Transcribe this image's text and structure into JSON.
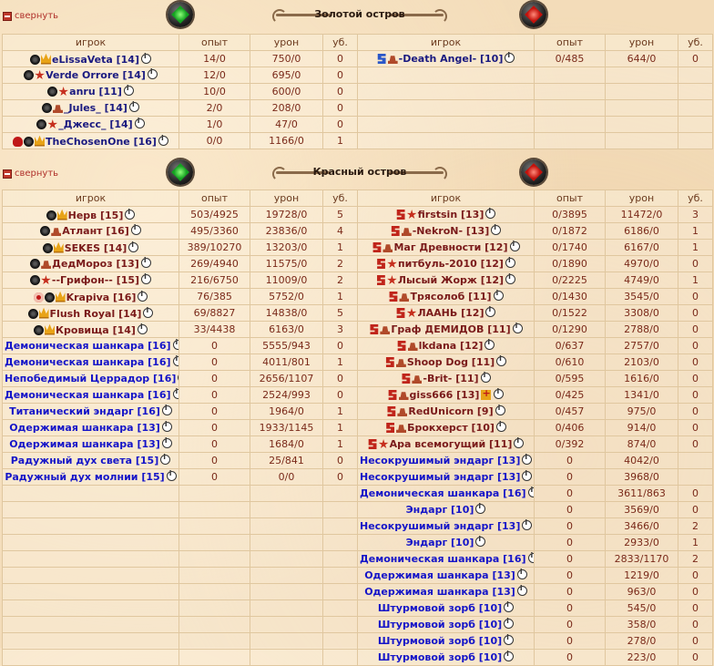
{
  "collapse_label": "свернуть",
  "headers": {
    "player": "игрок",
    "exp": "опыт",
    "dmg": "урон",
    "kills": "уб."
  },
  "sections": [
    {
      "title": "Золотой остров",
      "left": [
        {
          "icons": [
            "dark",
            "crown"
          ],
          "name": "eLissaVeta",
          "level": "[14]",
          "exp": "14/0",
          "dmg": "750/0",
          "kills": "0",
          "cls": "gold"
        },
        {
          "icons": [
            "dark",
            "star"
          ],
          "name": "Verde Orrore",
          "level": "[14]",
          "exp": "12/0",
          "dmg": "695/0",
          "kills": "0",
          "cls": "gold"
        },
        {
          "icons": [
            "dark",
            "star"
          ],
          "name": "anru",
          "level": "[11]",
          "exp": "10/0",
          "dmg": "600/0",
          "kills": "0",
          "cls": "gold"
        },
        {
          "icons": [
            "dark",
            "hat"
          ],
          "name": "_Jules_",
          "level": "[14]",
          "exp": "2/0",
          "dmg": "208/0",
          "kills": "0",
          "cls": "gold"
        },
        {
          "icons": [
            "dark",
            "star"
          ],
          "name": "_Джесс_",
          "level": "[14]",
          "exp": "1/0",
          "dmg": "47/0",
          "kills": "0",
          "cls": "gold"
        },
        {
          "icons": [
            "skull",
            "dark",
            "crown"
          ],
          "name": "TheChosenOne",
          "level": "[16]",
          "exp": "0/0",
          "dmg": "1166/0",
          "kills": "1",
          "cls": "gold"
        }
      ],
      "right": [
        {
          "icons": [
            "blue",
            "hat"
          ],
          "name": "-Death Angel-",
          "level": "[10]",
          "exp": "0/485",
          "dmg": "644/0",
          "kills": "0",
          "cls": "gold"
        },
        {},
        {},
        {},
        {},
        {}
      ]
    },
    {
      "title": "Красный остров",
      "left": [
        {
          "icons": [
            "dark",
            "crown"
          ],
          "name": "Нерв",
          "level": "[15]",
          "exp": "503/4925",
          "dmg": "19728/0",
          "kills": "5",
          "cls": "red"
        },
        {
          "icons": [
            "dark",
            "hat"
          ],
          "name": "Атлант",
          "level": "[16]",
          "exp": "495/3360",
          "dmg": "23836/0",
          "kills": "4",
          "cls": "red"
        },
        {
          "icons": [
            "dark",
            "crown"
          ],
          "name": "SEKES",
          "level": "[14]",
          "exp": "389/10270",
          "dmg": "13203/0",
          "kills": "1",
          "cls": "red"
        },
        {
          "icons": [
            "dark",
            "hat"
          ],
          "name": "ДедМороз",
          "level": "[13]",
          "exp": "269/4940",
          "dmg": "11575/0",
          "kills": "2",
          "cls": "red"
        },
        {
          "icons": [
            "dark",
            "star"
          ],
          "name": "--Грифон--",
          "level": "[15]",
          "exp": "216/6750",
          "dmg": "11009/0",
          "kills": "2",
          "cls": "red"
        },
        {
          "icons": [
            "heart",
            "dark",
            "crown"
          ],
          "name": "Krapiva",
          "level": "[16]",
          "exp": "76/385",
          "dmg": "5752/0",
          "kills": "1",
          "cls": "red"
        },
        {
          "icons": [
            "dark",
            "crown"
          ],
          "name": "Flush Royal",
          "level": "[14]",
          "exp": "69/8827",
          "dmg": "14838/0",
          "kills": "5",
          "cls": "red"
        },
        {
          "icons": [
            "dark",
            "crown"
          ],
          "name": "Кровища",
          "level": "[14]",
          "exp": "33/4438",
          "dmg": "6163/0",
          "kills": "3",
          "cls": "red"
        },
        {
          "icons": [],
          "name": "Демоническая шанкара",
          "level": "[16]",
          "exp": "0",
          "dmg": "5555/943",
          "kills": "0",
          "cls": "npc"
        },
        {
          "icons": [],
          "name": "Демоническая шанкара",
          "level": "[16]",
          "exp": "0",
          "dmg": "4011/801",
          "kills": "1",
          "cls": "npc"
        },
        {
          "icons": [],
          "name": "Непобедимый Церрадор",
          "level": "[16]",
          "exp": "0",
          "dmg": "2656/1107",
          "kills": "0",
          "cls": "npc"
        },
        {
          "icons": [],
          "name": "Демоническая шанкара",
          "level": "[16]",
          "exp": "0",
          "dmg": "2524/993",
          "kills": "0",
          "cls": "npc"
        },
        {
          "icons": [],
          "name": "Титанический эндарг",
          "level": "[16]",
          "exp": "0",
          "dmg": "1964/0",
          "kills": "1",
          "cls": "npc"
        },
        {
          "icons": [],
          "name": "Одержимая шанкара",
          "level": "[13]",
          "exp": "0",
          "dmg": "1933/1145",
          "kills": "1",
          "cls": "npc"
        },
        {
          "icons": [],
          "name": "Одержимая шанкара",
          "level": "[13]",
          "exp": "0",
          "dmg": "1684/0",
          "kills": "1",
          "cls": "npc"
        },
        {
          "icons": [],
          "name": "Радужный дух света ",
          "level": "[15]",
          "exp": "0",
          "dmg": "25/841",
          "kills": "0",
          "cls": "npc"
        },
        {
          "icons": [],
          "name": "Радужный дух молнии ",
          "level": "[15]",
          "exp": "0",
          "dmg": "0/0",
          "kills": "0",
          "cls": "npc"
        },
        {},
        {},
        {},
        {},
        {},
        {},
        {},
        {},
        {},
        {}
      ],
      "right": [
        {
          "icons": [
            "snake",
            "star"
          ],
          "name": "firstsin",
          "level": "[13]",
          "exp": "0/3895",
          "dmg": "11472/0",
          "kills": "3",
          "cls": "red"
        },
        {
          "icons": [
            "snake",
            "hat"
          ],
          "name": "-NekroN-",
          "level": "[13]",
          "exp": "0/1872",
          "dmg": "6186/0",
          "kills": "1",
          "cls": "red"
        },
        {
          "icons": [
            "snake",
            "hat"
          ],
          "name": "Маг Древности",
          "level": "[12]",
          "exp": "0/1740",
          "dmg": "6167/0",
          "kills": "1",
          "cls": "red"
        },
        {
          "icons": [
            "snake",
            "star"
          ],
          "name": "питбуль-2010",
          "level": "[12]",
          "exp": "0/1890",
          "dmg": "4970/0",
          "kills": "0",
          "cls": "red"
        },
        {
          "icons": [
            "snake",
            "star"
          ],
          "name": "Лысый Жорж",
          "level": "[12]",
          "exp": "0/2225",
          "dmg": "4749/0",
          "kills": "1",
          "cls": "red"
        },
        {
          "icons": [
            "snake",
            "hat"
          ],
          "name": "Трясолоб",
          "level": "[11]",
          "exp": "0/1430",
          "dmg": "3545/0",
          "kills": "0",
          "cls": "red"
        },
        {
          "icons": [
            "snake",
            "star"
          ],
          "name": "ЛААНЬ",
          "level": "[12]",
          "exp": "0/1522",
          "dmg": "3308/0",
          "kills": "0",
          "cls": "red"
        },
        {
          "icons": [
            "snake",
            "hat"
          ],
          "name": "Граф ДЕМИДОВ",
          "level": "[11]",
          "exp": "0/1290",
          "dmg": "2788/0",
          "kills": "0",
          "cls": "red"
        },
        {
          "icons": [
            "snake",
            "hat"
          ],
          "name": "lkdana",
          "level": "[12]",
          "exp": "0/637",
          "dmg": "2757/0",
          "kills": "0",
          "cls": "red"
        },
        {
          "icons": [
            "snake",
            "hat"
          ],
          "name": "Shoop Dog",
          "level": "[11]",
          "exp": "0/610",
          "dmg": "2103/0",
          "kills": "0",
          "cls": "red"
        },
        {
          "icons": [
            "snake",
            "hat"
          ],
          "name": "-Brit-",
          "level": "[11]",
          "exp": "0/595",
          "dmg": "1616/0",
          "kills": "0",
          "cls": "red"
        },
        {
          "icons": [
            "snake",
            "hat"
          ],
          "name": "giss666",
          "level": "[13]",
          "exp": "0/425",
          "dmg": "1341/0",
          "kills": "0",
          "cls": "red",
          "badge": true
        },
        {
          "icons": [
            "snake",
            "hat"
          ],
          "name": "RedUnicorn",
          "level": "[9]",
          "exp": "0/457",
          "dmg": "975/0",
          "kills": "0",
          "cls": "red"
        },
        {
          "icons": [
            "snake",
            "hat"
          ],
          "name": "Брокхерст",
          "level": "[10]",
          "exp": "0/406",
          "dmg": "914/0",
          "kills": "0",
          "cls": "red"
        },
        {
          "icons": [
            "snake",
            "star"
          ],
          "name": "Ара всемогущий",
          "level": "[11]",
          "exp": "0/392",
          "dmg": "874/0",
          "kills": "0",
          "cls": "red"
        },
        {
          "icons": [],
          "name": "Несокрушимый эндарг",
          "level": "[13]",
          "exp": "0",
          "dmg": "4042/0",
          "kills": "",
          "cls": "npc"
        },
        {
          "icons": [],
          "name": "Несокрушимый эндарг",
          "level": "[13]",
          "exp": "0",
          "dmg": "3968/0",
          "kills": "",
          "cls": "npc"
        },
        {
          "icons": [],
          "name": "Демоническая шанкара",
          "level": "[16]",
          "exp": "0",
          "dmg": "3611/863",
          "kills": "0",
          "cls": "npc"
        },
        {
          "icons": [],
          "name": "Эндарг",
          "level": "[10]",
          "exp": "0",
          "dmg": "3569/0",
          "kills": "0",
          "cls": "npc"
        },
        {
          "icons": [],
          "name": "Несокрушимый эндарг",
          "level": "[13]",
          "exp": "0",
          "dmg": "3466/0",
          "kills": "2",
          "cls": "npc"
        },
        {
          "icons": [],
          "name": "Эндарг",
          "level": "[10]",
          "exp": "0",
          "dmg": "2933/0",
          "kills": "1",
          "cls": "npc"
        },
        {
          "icons": [],
          "name": "Демоническая шанкара",
          "level": "[16]",
          "exp": "0",
          "dmg": "2833/1170",
          "kills": "2",
          "cls": "npc"
        },
        {
          "icons": [],
          "name": "Одержимая шанкара",
          "level": "[13]",
          "exp": "0",
          "dmg": "1219/0",
          "kills": "0",
          "cls": "npc"
        },
        {
          "icons": [],
          "name": "Одержимая шанкара",
          "level": "[13]",
          "exp": "0",
          "dmg": "963/0",
          "kills": "0",
          "cls": "npc"
        },
        {
          "icons": [],
          "name": "Штурмовой зорб",
          "level": "[10]",
          "exp": "0",
          "dmg": "545/0",
          "kills": "0",
          "cls": "npc"
        },
        {
          "icons": [],
          "name": "Штурмовой зорб",
          "level": "[10]",
          "exp": "0",
          "dmg": "358/0",
          "kills": "0",
          "cls": "npc"
        },
        {
          "icons": [],
          "name": "Штурмовой зорб",
          "level": "[10]",
          "exp": "0",
          "dmg": "278/0",
          "kills": "0",
          "cls": "npc"
        },
        {
          "icons": [],
          "name": "Штурмовой зорб",
          "level": "[10]",
          "exp": "0",
          "dmg": "223/0",
          "kills": "0",
          "cls": "npc"
        }
      ]
    }
  ]
}
